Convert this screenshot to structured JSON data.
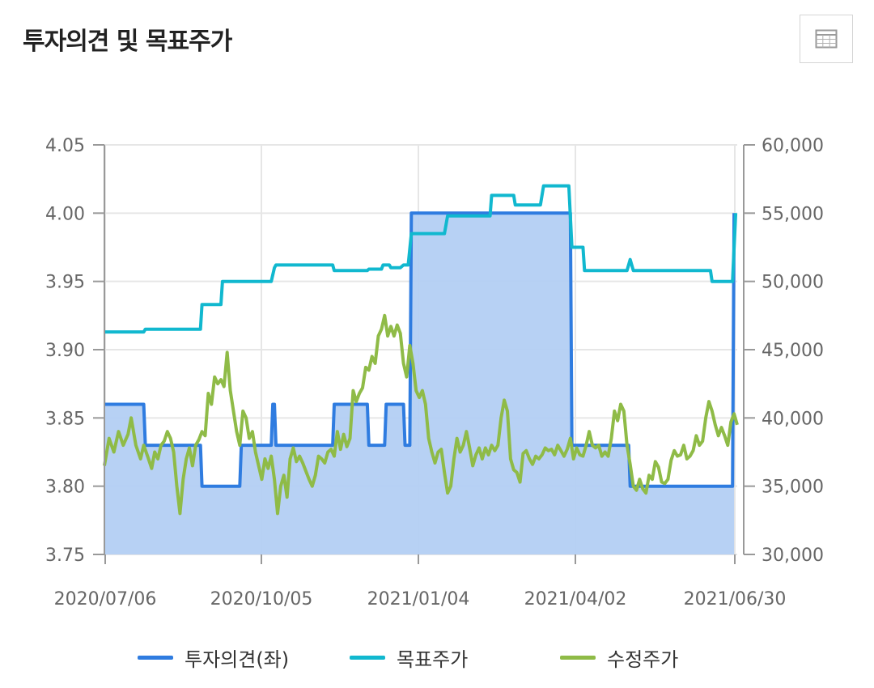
{
  "header": {
    "title": "투자의견 및 목표주가"
  },
  "toolbar": {
    "table_icon": "table-grid-icon"
  },
  "chart_data": {
    "type": "line",
    "x_tick_labels": [
      "2020/07/06",
      "2020/10/05",
      "2021/01/04",
      "2021/04/02",
      "2021/06/30"
    ],
    "left_axis": {
      "ylim": [
        3.75,
        4.05
      ],
      "ticks": [
        "3.75",
        "3.80",
        "3.85",
        "3.90",
        "3.95",
        "4.00",
        "4.05"
      ]
    },
    "right_axis": {
      "ylim": [
        30000,
        60000
      ],
      "ticks": [
        "30,000",
        "35,000",
        "40,000",
        "45,000",
        "50,000",
        "55,000",
        "60,000"
      ]
    },
    "grid": true,
    "legend_position": "bottom",
    "series": [
      {
        "name": "투자의견(좌)",
        "axis": "left",
        "color": "#2f7ce0",
        "fill": "#b3cff3",
        "points": [
          [
            0,
            3.86
          ],
          [
            25,
            3.86
          ],
          [
            26,
            3.83
          ],
          [
            61,
            3.83
          ],
          [
            62,
            3.8
          ],
          [
            86,
            3.8
          ],
          [
            87,
            3.83
          ],
          [
            106,
            3.83
          ],
          [
            107,
            3.86
          ],
          [
            108,
            3.86
          ],
          [
            109,
            3.83
          ],
          [
            145,
            3.83
          ],
          [
            146,
            3.86
          ],
          [
            167,
            3.86
          ],
          [
            168,
            3.83
          ],
          [
            178,
            3.83
          ],
          [
            179,
            3.86
          ],
          [
            190,
            3.86
          ],
          [
            191,
            3.83
          ],
          [
            194,
            3.83
          ],
          [
            195,
            4.0
          ],
          [
            296,
            4.0
          ],
          [
            297,
            3.83
          ],
          [
            333,
            3.83
          ],
          [
            334,
            3.8
          ],
          [
            399,
            3.8
          ],
          [
            400,
            4.0
          ]
        ]
      },
      {
        "name": "목표주가",
        "axis": "right",
        "color": "#11b8cf",
        "points": [
          [
            0,
            46300
          ],
          [
            25,
            46300
          ],
          [
            26,
            46500
          ],
          [
            61,
            46500
          ],
          [
            62,
            48300
          ],
          [
            74,
            48300
          ],
          [
            75,
            50000
          ],
          [
            106,
            50000
          ],
          [
            108,
            51000
          ],
          [
            109,
            51200
          ],
          [
            145,
            51200
          ],
          [
            146,
            50800
          ],
          [
            167,
            50800
          ],
          [
            168,
            50900
          ],
          [
            176,
            50900
          ],
          [
            177,
            51200
          ],
          [
            181,
            51200
          ],
          [
            182,
            51000
          ],
          [
            188,
            51000
          ],
          [
            190,
            51200
          ],
          [
            193,
            51200
          ],
          [
            195,
            53500
          ],
          [
            216,
            53500
          ],
          [
            218,
            54800
          ],
          [
            245,
            54800
          ],
          [
            246,
            56300
          ],
          [
            260,
            56300
          ],
          [
            261,
            55600
          ],
          [
            277,
            55600
          ],
          [
            279,
            57000
          ],
          [
            295,
            57000
          ],
          [
            297,
            52500
          ],
          [
            304,
            52500
          ],
          [
            305,
            50800
          ],
          [
            332,
            50800
          ],
          [
            334,
            51600
          ],
          [
            336,
            50800
          ],
          [
            385,
            50800
          ],
          [
            386,
            50000
          ],
          [
            399,
            50000
          ],
          [
            401,
            55000
          ]
        ]
      },
      {
        "name": "수정주가",
        "axis": "right",
        "color": "#8fbb47",
        "points": [
          [
            0,
            36500
          ],
          [
            3,
            38500
          ],
          [
            6,
            37500
          ],
          [
            9,
            39000
          ],
          [
            12,
            38000
          ],
          [
            15,
            38800
          ],
          [
            17,
            40000
          ],
          [
            20,
            38000
          ],
          [
            23,
            37000
          ],
          [
            25,
            38000
          ],
          [
            28,
            37000
          ],
          [
            30,
            36300
          ],
          [
            32,
            37500
          ],
          [
            34,
            37000
          ],
          [
            36,
            38000
          ],
          [
            38,
            38300
          ],
          [
            40,
            39000
          ],
          [
            42,
            38500
          ],
          [
            44,
            37500
          ],
          [
            46,
            35000
          ],
          [
            48,
            33000
          ],
          [
            50,
            35500
          ],
          [
            52,
            37000
          ],
          [
            54,
            37800
          ],
          [
            56,
            36500
          ],
          [
            58,
            38000
          ],
          [
            60,
            38400
          ],
          [
            62,
            39000
          ],
          [
            64,
            38700
          ],
          [
            66,
            41800
          ],
          [
            68,
            41000
          ],
          [
            70,
            43000
          ],
          [
            72,
            42500
          ],
          [
            74,
            42800
          ],
          [
            76,
            42300
          ],
          [
            78,
            44800
          ],
          [
            80,
            42000
          ],
          [
            82,
            40500
          ],
          [
            84,
            39000
          ],
          [
            86,
            38000
          ],
          [
            88,
            40500
          ],
          [
            90,
            40000
          ],
          [
            92,
            38500
          ],
          [
            94,
            39000
          ],
          [
            96,
            37500
          ],
          [
            98,
            36500
          ],
          [
            100,
            35500
          ],
          [
            102,
            37000
          ],
          [
            104,
            36300
          ],
          [
            106,
            37200
          ],
          [
            108,
            35500
          ],
          [
            110,
            33000
          ],
          [
            112,
            35000
          ],
          [
            114,
            35800
          ],
          [
            116,
            34200
          ],
          [
            118,
            37000
          ],
          [
            120,
            37800
          ],
          [
            122,
            36800
          ],
          [
            124,
            37200
          ],
          [
            126,
            36700
          ],
          [
            128,
            36100
          ],
          [
            130,
            35500
          ],
          [
            132,
            35000
          ],
          [
            134,
            35800
          ],
          [
            136,
            37200
          ],
          [
            138,
            37000
          ],
          [
            140,
            36700
          ],
          [
            142,
            37500
          ],
          [
            144,
            37700
          ],
          [
            146,
            37200
          ],
          [
            148,
            39000
          ],
          [
            150,
            37700
          ],
          [
            152,
            38800
          ],
          [
            154,
            37900
          ],
          [
            156,
            38500
          ],
          [
            158,
            42000
          ],
          [
            160,
            41200
          ],
          [
            162,
            41800
          ],
          [
            164,
            42200
          ],
          [
            166,
            43700
          ],
          [
            168,
            43500
          ],
          [
            170,
            44500
          ],
          [
            172,
            44000
          ],
          [
            174,
            46000
          ],
          [
            176,
            46500
          ],
          [
            178,
            47500
          ],
          [
            180,
            46000
          ],
          [
            182,
            46700
          ],
          [
            184,
            46000
          ],
          [
            186,
            46800
          ],
          [
            188,
            46200
          ],
          [
            190,
            44000
          ],
          [
            192,
            43000
          ],
          [
            194,
            45300
          ],
          [
            196,
            44000
          ],
          [
            198,
            42000
          ],
          [
            200,
            41500
          ],
          [
            202,
            42000
          ],
          [
            204,
            41000
          ],
          [
            206,
            38500
          ],
          [
            208,
            37500
          ],
          [
            210,
            36700
          ],
          [
            212,
            37500
          ],
          [
            214,
            37700
          ],
          [
            216,
            36000
          ],
          [
            218,
            34500
          ],
          [
            220,
            35000
          ],
          [
            222,
            37000
          ],
          [
            224,
            38500
          ],
          [
            226,
            37500
          ],
          [
            228,
            38000
          ],
          [
            230,
            39000
          ],
          [
            232,
            37800
          ],
          [
            234,
            36500
          ],
          [
            236,
            37300
          ],
          [
            238,
            37800
          ],
          [
            240,
            37000
          ],
          [
            242,
            37800
          ],
          [
            244,
            37300
          ],
          [
            246,
            38000
          ],
          [
            248,
            37600
          ],
          [
            250,
            38000
          ],
          [
            252,
            40000
          ],
          [
            254,
            41300
          ],
          [
            256,
            40500
          ],
          [
            258,
            37000
          ],
          [
            260,
            36200
          ],
          [
            262,
            36000
          ],
          [
            264,
            35300
          ],
          [
            266,
            37400
          ],
          [
            268,
            37600
          ],
          [
            270,
            37000
          ],
          [
            272,
            36600
          ],
          [
            274,
            37200
          ],
          [
            276,
            37000
          ],
          [
            278,
            37300
          ],
          [
            280,
            37800
          ],
          [
            282,
            37600
          ],
          [
            284,
            37700
          ],
          [
            286,
            37300
          ],
          [
            288,
            38000
          ],
          [
            290,
            37600
          ],
          [
            292,
            37200
          ],
          [
            294,
            37700
          ],
          [
            296,
            38500
          ],
          [
            298,
            37000
          ],
          [
            300,
            37800
          ],
          [
            302,
            37300
          ],
          [
            304,
            37200
          ],
          [
            306,
            38000
          ],
          [
            308,
            39000
          ],
          [
            310,
            38000
          ],
          [
            312,
            37800
          ],
          [
            314,
            38000
          ],
          [
            316,
            37200
          ],
          [
            318,
            37500
          ],
          [
            320,
            37200
          ],
          [
            322,
            38500
          ],
          [
            324,
            40500
          ],
          [
            326,
            39800
          ],
          [
            328,
            41000
          ],
          [
            330,
            40500
          ],
          [
            332,
            38000
          ],
          [
            334,
            36600
          ],
          [
            336,
            35000
          ],
          [
            338,
            34700
          ],
          [
            340,
            35500
          ],
          [
            342,
            34800
          ],
          [
            344,
            34500
          ],
          [
            346,
            35800
          ],
          [
            348,
            35500
          ],
          [
            350,
            36800
          ],
          [
            352,
            36400
          ],
          [
            354,
            35300
          ],
          [
            356,
            35200
          ],
          [
            358,
            35500
          ],
          [
            360,
            36900
          ],
          [
            362,
            37600
          ],
          [
            364,
            37200
          ],
          [
            366,
            37300
          ],
          [
            368,
            38000
          ],
          [
            370,
            37000
          ],
          [
            372,
            37200
          ],
          [
            374,
            37600
          ],
          [
            376,
            38700
          ],
          [
            378,
            38000
          ],
          [
            380,
            38300
          ],
          [
            382,
            40000
          ],
          [
            384,
            41200
          ],
          [
            386,
            40500
          ],
          [
            388,
            39500
          ],
          [
            390,
            38700
          ],
          [
            392,
            39300
          ],
          [
            394,
            38700
          ],
          [
            396,
            38000
          ],
          [
            398,
            39700
          ],
          [
            400,
            40300
          ],
          [
            402,
            39500
          ]
        ]
      }
    ]
  }
}
